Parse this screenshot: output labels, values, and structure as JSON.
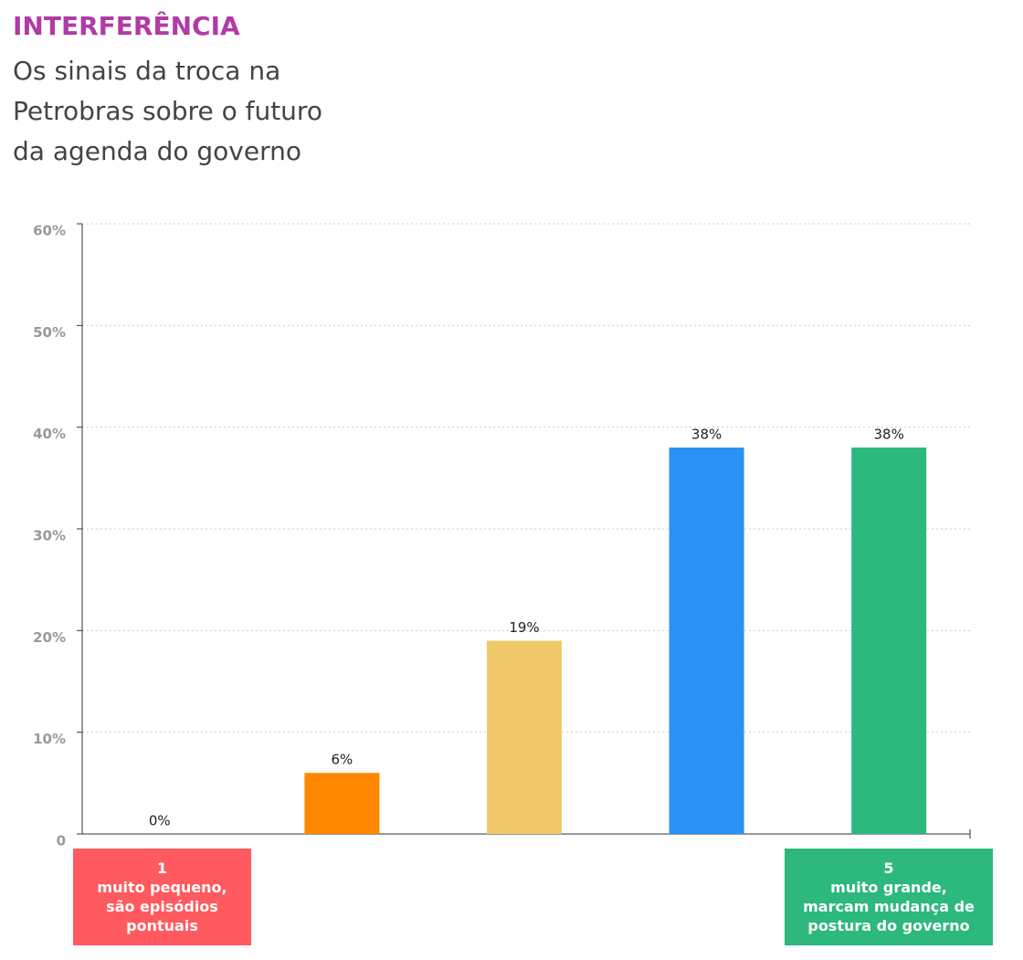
{
  "chart_data": {
    "type": "bar",
    "title": "INTERFERÊNCIA",
    "subtitle_lines": [
      "Os sinais da troca na",
      "Petrobras sobre o futuro",
      "da agenda do governo"
    ],
    "categories": [
      "1",
      null,
      null,
      null,
      "5"
    ],
    "category_notes": [
      [
        "muito pequeno,",
        "são episódios",
        "pontuais"
      ],
      null,
      null,
      null,
      [
        "muito grande,",
        "marcam mudança de",
        "postura do governo"
      ]
    ],
    "values": [
      0,
      6,
      19,
      38,
      38
    ],
    "value_labels": [
      "0%",
      "6%",
      "19%",
      "38%",
      "38%"
    ],
    "colors": [
      "#ff5a5f",
      "#ff8800",
      "#f0c96a",
      "#2a91f7",
      "#2db87d"
    ],
    "ylim": [
      0,
      60
    ],
    "yticks": [
      0,
      {
        "value": 10,
        "label": "10%"
      },
      {
        "value": 20,
        "label": "20%"
      },
      {
        "value": 30,
        "label": "30%"
      },
      {
        "value": 40,
        "label": "40%"
      },
      {
        "value": 50,
        "label": "50%"
      },
      {
        "value": 60,
        "label": "60%"
      }
    ],
    "grid": true
  }
}
